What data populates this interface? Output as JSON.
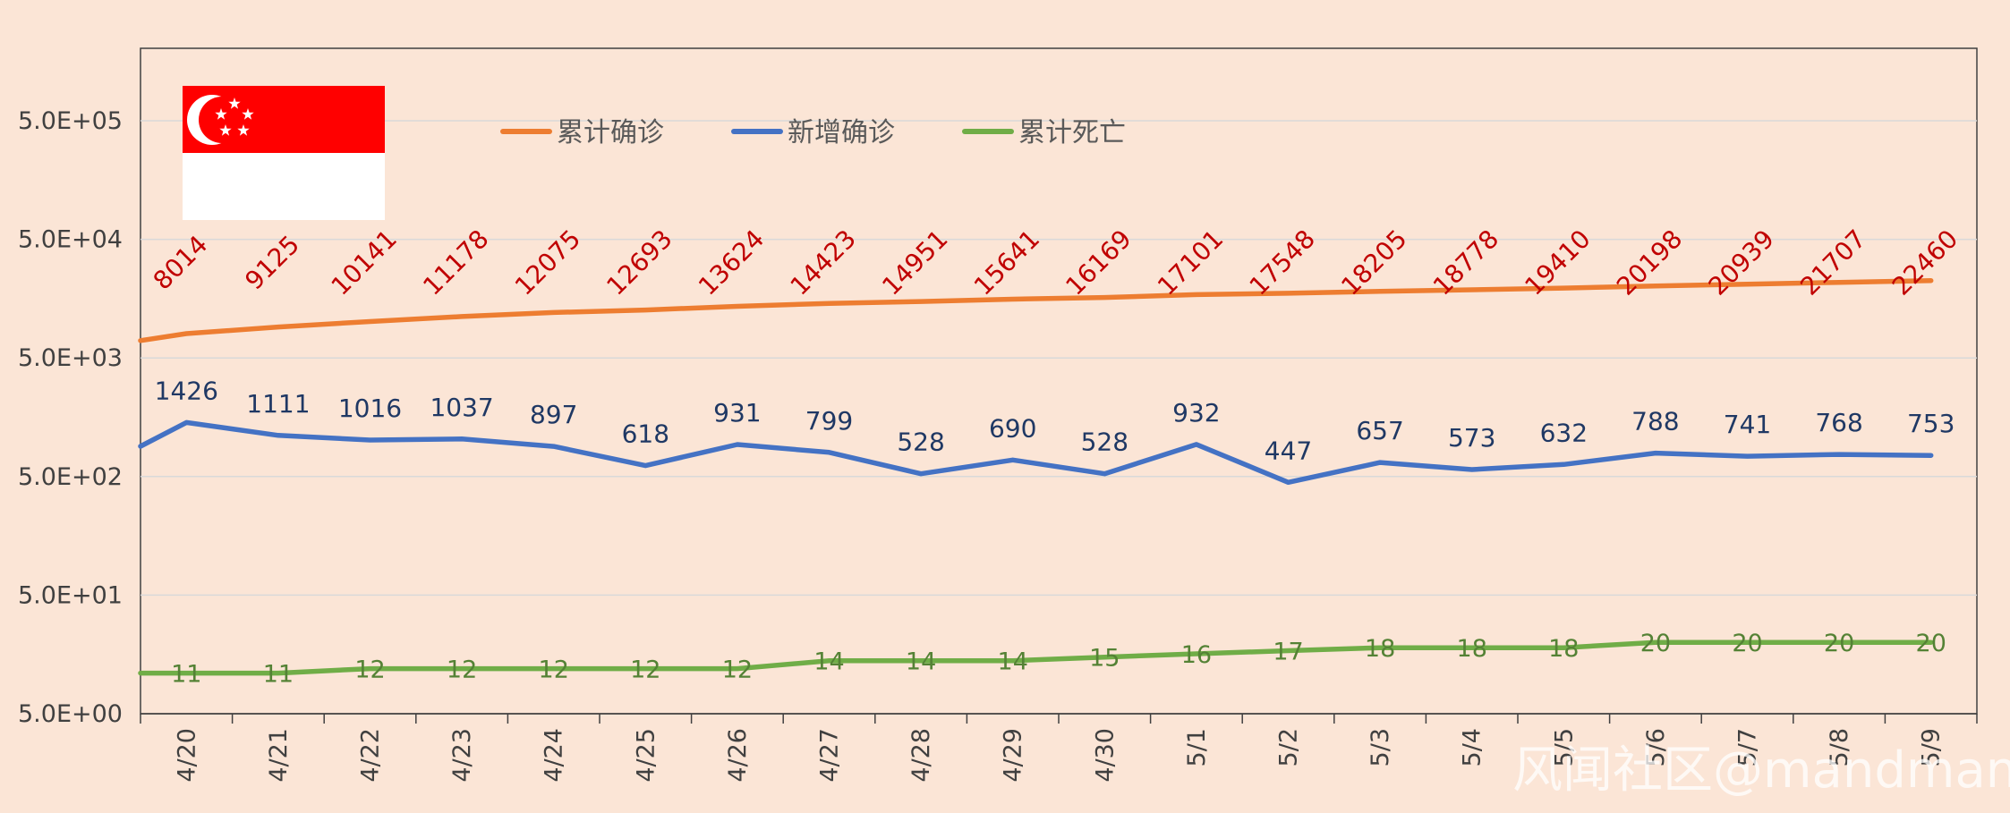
{
  "chart_data": {
    "type": "line",
    "x": [
      "4/20",
      "4/21",
      "4/22",
      "4/23",
      "4/24",
      "4/25",
      "4/26",
      "4/27",
      "4/28",
      "4/29",
      "4/30",
      "5/1",
      "5/2",
      "5/3",
      "5/4",
      "5/5",
      "5/6",
      "5/7",
      "5/8",
      "5/9"
    ],
    "y_scale": "log",
    "ylim": [
      5,
      500000
    ],
    "y_ticks": [
      "5.0E+00",
      "5.0E+01",
      "5.0E+02",
      "5.0E+03",
      "5.0E+04",
      "5.0E+05"
    ],
    "grid": true,
    "legend_position": "top",
    "series": [
      {
        "name": "累计确诊",
        "color": "#ED7D31",
        "values": [
          8014,
          9125,
          10141,
          11178,
          12075,
          12693,
          13624,
          14423,
          14951,
          15641,
          16169,
          17101,
          17548,
          18205,
          18778,
          19410,
          20198,
          20939,
          21707,
          22460
        ],
        "labels": [
          "8014",
          "9125",
          "10141",
          "11178",
          "12075",
          "12693",
          "13624",
          "14423",
          "14951",
          "15641",
          "16169",
          "17101",
          "17548",
          "18205",
          "18778",
          "19410",
          "20198",
          "20939",
          "21707",
          "22460"
        ]
      },
      {
        "name": "新增确诊",
        "color": "#4472C4",
        "values": [
          1426,
          1111,
          1016,
          1037,
          897,
          618,
          931,
          799,
          528,
          690,
          528,
          932,
          447,
          657,
          573,
          632,
          788,
          741,
          768,
          753
        ],
        "labels": [
          "1426",
          "1111",
          "1016",
          "1037",
          "897",
          "618",
          "931",
          "799",
          "528",
          "690",
          "528",
          "932",
          "447",
          "657",
          "573",
          "632",
          "788",
          "741",
          "768",
          "753"
        ]
      },
      {
        "name": "累计死亡",
        "color": "#70AD47",
        "values": [
          11,
          11,
          12,
          12,
          12,
          12,
          12,
          14,
          14,
          14,
          15,
          16,
          17,
          18,
          18,
          18,
          20,
          20,
          20,
          20
        ],
        "labels": [
          "11",
          "11",
          "12",
          "12",
          "12",
          "12",
          "12",
          "14",
          "14",
          "14",
          "15",
          "16",
          "17",
          "18",
          "18",
          "18",
          "20",
          "20",
          "20",
          "20"
        ]
      }
    ]
  },
  "flag": {
    "name": "singapore-flag",
    "red": "#FF0000",
    "white": "#FFFFFF"
  },
  "watermark": "风闻社区@mandman"
}
